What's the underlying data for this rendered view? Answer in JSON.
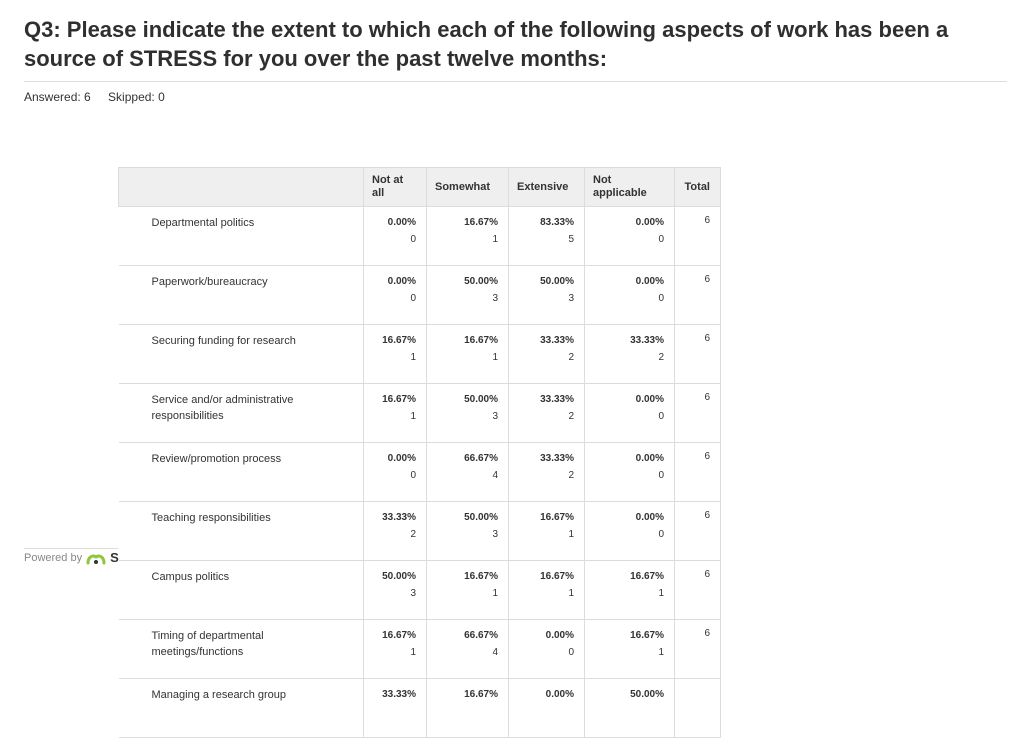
{
  "title": "Q3: Please indicate the extent to which each of the following aspects of work has been a source of STRESS for you over the past twelve months:",
  "answered": "Answered: 6",
  "skipped": "Skipped: 0",
  "table": {
    "headers": [
      "Not at all",
      "Somewhat",
      "Extensive",
      "Not applicable",
      "Total"
    ],
    "rows": [
      {
        "label": "Departmental politics",
        "pcts": [
          "0.00%",
          "16.67%",
          "83.33%",
          "0.00%"
        ],
        "counts": [
          "0",
          "1",
          "5",
          "0"
        ],
        "total": "6"
      },
      {
        "label": "Paperwork/bureaucracy",
        "pcts": [
          "0.00%",
          "50.00%",
          "50.00%",
          "0.00%"
        ],
        "counts": [
          "0",
          "3",
          "3",
          "0"
        ],
        "total": "6"
      },
      {
        "label": "Securing funding for research",
        "pcts": [
          "16.67%",
          "16.67%",
          "33.33%",
          "33.33%"
        ],
        "counts": [
          "1",
          "1",
          "2",
          "2"
        ],
        "total": "6"
      },
      {
        "label": "Service and/or administrative responsibilities",
        "pcts": [
          "16.67%",
          "50.00%",
          "33.33%",
          "0.00%"
        ],
        "counts": [
          "1",
          "3",
          "2",
          "0"
        ],
        "total": "6"
      },
      {
        "label": "Review/promotion process",
        "pcts": [
          "0.00%",
          "66.67%",
          "33.33%",
          "0.00%"
        ],
        "counts": [
          "0",
          "4",
          "2",
          "0"
        ],
        "total": "6"
      },
      {
        "label": "Teaching responsibilities",
        "pcts": [
          "33.33%",
          "50.00%",
          "16.67%",
          "0.00%"
        ],
        "counts": [
          "2",
          "3",
          "1",
          "0"
        ],
        "total": "6"
      },
      {
        "label": "Campus politics",
        "pcts": [
          "50.00%",
          "16.67%",
          "16.67%",
          "16.67%"
        ],
        "counts": [
          "3",
          "1",
          "1",
          "1"
        ],
        "total": "6"
      },
      {
        "label": "Timing of departmental meetings/functions",
        "pcts": [
          "16.67%",
          "66.67%",
          "0.00%",
          "16.67%"
        ],
        "counts": [
          "1",
          "4",
          "0",
          "1"
        ],
        "total": "6"
      },
      {
        "label": "Managing a research group",
        "pcts": [
          "33.33%",
          "16.67%",
          "0.00%",
          "50.00%"
        ],
        "counts": [
          "",
          "",
          "",
          ""
        ],
        "total": ""
      }
    ]
  },
  "footer": {
    "powered_by": "Powered by",
    "logo_letter": "S",
    "logo_icon": "monkey-logo-icon",
    "logo_color": "#8dc63f"
  }
}
